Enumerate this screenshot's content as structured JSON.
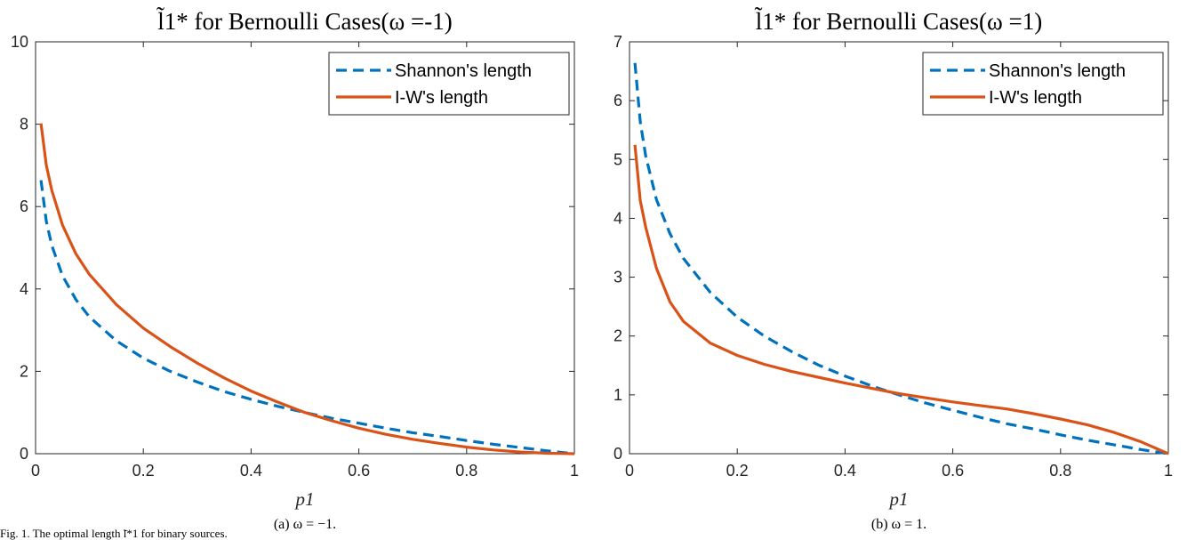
{
  "figure_cut_text": "Fig. 1. The optimal length ̃l*1 for binary sources.",
  "chart_data": [
    {
      "type": "line",
      "title": "l̃1* for Bernoulli Cases(ω =-1)",
      "xlabel": "p1",
      "ylabel": "",
      "caption": "(a) ω = −1.",
      "xlim": [
        0,
        1
      ],
      "ylim": [
        0,
        10
      ],
      "xticks": [
        "0",
        "0.2",
        "0.4",
        "0.6",
        "0.8",
        "1"
      ],
      "yticks": [
        "0",
        "2",
        "4",
        "6",
        "8",
        "10"
      ],
      "grid": false,
      "legend": "top-right",
      "x": [
        0.01,
        0.02,
        0.03,
        0.05,
        0.075,
        0.1,
        0.15,
        0.2,
        0.25,
        0.3,
        0.35,
        0.4,
        0.45,
        0.5,
        0.55,
        0.6,
        0.65,
        0.7,
        0.75,
        0.8,
        0.85,
        0.9,
        0.95,
        1.0
      ],
      "series": [
        {
          "name": "Shannon's length",
          "color": "#0072BD",
          "style": "dashed",
          "values": [
            6.64,
            5.64,
            5.06,
            4.32,
            3.74,
            3.32,
            2.74,
            2.32,
            2.0,
            1.74,
            1.51,
            1.32,
            1.15,
            1.0,
            0.86,
            0.74,
            0.62,
            0.51,
            0.42,
            0.32,
            0.23,
            0.15,
            0.07,
            0.0
          ]
        },
        {
          "name": "I-W's length",
          "color": "#D95319",
          "style": "solid",
          "values": [
            8.02,
            7.0,
            6.4,
            5.55,
            4.85,
            4.35,
            3.62,
            3.05,
            2.6,
            2.2,
            1.84,
            1.52,
            1.25,
            1.0,
            0.8,
            0.62,
            0.47,
            0.35,
            0.25,
            0.16,
            0.09,
            0.04,
            0.01,
            0.0
          ]
        }
      ]
    },
    {
      "type": "line",
      "title": "l̃1* for Bernoulli Cases(ω =1)",
      "xlabel": "p1",
      "ylabel": "",
      "caption": "(b) ω = 1.",
      "xlim": [
        0,
        1
      ],
      "ylim": [
        0,
        7
      ],
      "xticks": [
        "0",
        "0.2",
        "0.4",
        "0.6",
        "0.8",
        "1"
      ],
      "yticks": [
        "0",
        "1",
        "2",
        "3",
        "4",
        "5",
        "6",
        "7"
      ],
      "grid": false,
      "legend": "top-right",
      "x": [
        0.01,
        0.02,
        0.03,
        0.05,
        0.075,
        0.1,
        0.15,
        0.2,
        0.25,
        0.3,
        0.35,
        0.4,
        0.45,
        0.5,
        0.55,
        0.6,
        0.65,
        0.7,
        0.75,
        0.8,
        0.85,
        0.9,
        0.95,
        1.0
      ],
      "series": [
        {
          "name": "Shannon's length",
          "color": "#0072BD",
          "style": "dashed",
          "values": [
            6.64,
            5.64,
            5.06,
            4.32,
            3.74,
            3.32,
            2.74,
            2.32,
            2.0,
            1.74,
            1.51,
            1.32,
            1.15,
            1.0,
            0.86,
            0.74,
            0.62,
            0.51,
            0.42,
            0.32,
            0.23,
            0.15,
            0.07,
            0.0
          ]
        },
        {
          "name": "I-W's length",
          "color": "#D95319",
          "style": "solid",
          "values": [
            5.25,
            4.3,
            3.85,
            3.15,
            2.58,
            2.25,
            1.88,
            1.67,
            1.52,
            1.4,
            1.3,
            1.2,
            1.11,
            1.02,
            0.95,
            0.88,
            0.82,
            0.76,
            0.68,
            0.59,
            0.49,
            0.36,
            0.2,
            0.0
          ]
        }
      ]
    }
  ]
}
